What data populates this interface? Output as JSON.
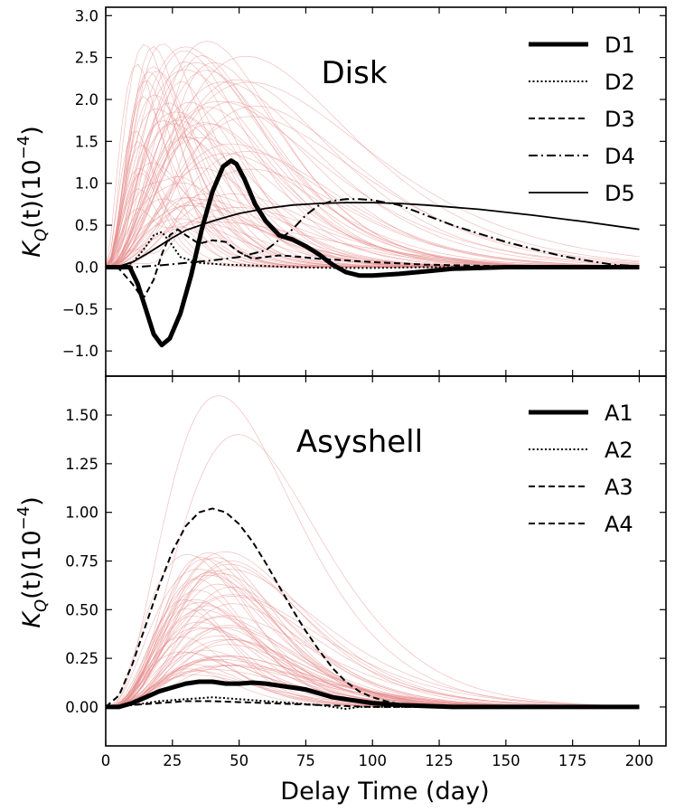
{
  "chart_data": [
    {
      "type": "line",
      "id": "disk",
      "title": "Disk",
      "xlabel": "",
      "ylabel_base": "K",
      "ylabel_sub": "Q",
      "ylabel_rest": "(t)(10",
      "ylabel_sup": "−4",
      "ylabel_close": ")",
      "xlim": [
        0,
        210
      ],
      "ylim": [
        -1.3,
        3.1
      ],
      "yticks": [
        -1.0,
        -0.5,
        0.0,
        0.5,
        1.0,
        1.5,
        2.0,
        2.5,
        3.0
      ],
      "ytick_labels": [
        "−1.0",
        "−0.5",
        "0.0",
        "0.5",
        "1.0",
        "1.5",
        "2.0",
        "2.5",
        "3.0"
      ],
      "xticks": [
        0,
        25,
        50,
        75,
        100,
        125,
        150,
        175,
        200
      ],
      "legend_position": "top-right",
      "ensemble_color": "#e58a8a",
      "ensemble_count": 70,
      "series": [
        {
          "name": "D1",
          "style": "solid-thick",
          "x": [
            0,
            9,
            12,
            15,
            18,
            21,
            24,
            28,
            32,
            36,
            40,
            44,
            47,
            49,
            52,
            56,
            60,
            65,
            70,
            75,
            80,
            85,
            90,
            95,
            100,
            110,
            120,
            130,
            140,
            150,
            160,
            180,
            200
          ],
          "y": [
            0.0,
            0.0,
            -0.2,
            -0.5,
            -0.8,
            -0.93,
            -0.85,
            -0.55,
            -0.1,
            0.45,
            0.9,
            1.2,
            1.27,
            1.23,
            1.05,
            0.75,
            0.55,
            0.38,
            0.33,
            0.25,
            0.15,
            0.03,
            -0.06,
            -0.1,
            -0.1,
            -0.08,
            -0.05,
            -0.02,
            -0.01,
            0.0,
            0.0,
            0.0,
            0.0
          ]
        },
        {
          "name": "D2",
          "style": "dotted",
          "x": [
            0,
            5,
            10,
            14,
            18,
            21,
            24,
            28,
            35,
            45,
            55,
            70,
            85,
            100,
            120,
            150,
            200
          ],
          "y": [
            0.0,
            0.0,
            0.05,
            0.2,
            0.38,
            0.42,
            0.3,
            0.12,
            0.05,
            0.03,
            0.02,
            0.0,
            -0.01,
            -0.01,
            0.0,
            0.0,
            0.0
          ]
        },
        {
          "name": "D3",
          "style": "dashed",
          "x": [
            0,
            5,
            10,
            14,
            18,
            21,
            24,
            27,
            30,
            35,
            40,
            45,
            50,
            55,
            60,
            65,
            70,
            80,
            90,
            100,
            120,
            150,
            200
          ],
          "y": [
            0.0,
            -0.02,
            -0.2,
            -0.38,
            -0.15,
            0.15,
            0.38,
            0.45,
            0.38,
            0.28,
            0.32,
            0.3,
            0.18,
            0.1,
            0.12,
            0.14,
            0.13,
            0.1,
            0.08,
            0.06,
            0.03,
            0.01,
            0.0
          ]
        },
        {
          "name": "D4",
          "style": "dashdot",
          "x": [
            0,
            10,
            20,
            30,
            40,
            50,
            60,
            70,
            75,
            80,
            85,
            90,
            95,
            100,
            110,
            120,
            130,
            140,
            150,
            160,
            170,
            180,
            190,
            200
          ],
          "y": [
            0.0,
            0.0,
            0.02,
            0.05,
            0.08,
            0.12,
            0.2,
            0.45,
            0.62,
            0.74,
            0.79,
            0.81,
            0.81,
            0.8,
            0.74,
            0.62,
            0.5,
            0.4,
            0.3,
            0.22,
            0.14,
            0.08,
            0.03,
            0.01
          ]
        },
        {
          "name": "D5",
          "style": "solid",
          "x": [
            0,
            5,
            10,
            15,
            20,
            25,
            30,
            40,
            50,
            60,
            70,
            80,
            90,
            100,
            110,
            120,
            140,
            160,
            180,
            200
          ],
          "y": [
            0.0,
            0.01,
            0.06,
            0.15,
            0.25,
            0.35,
            0.44,
            0.55,
            0.64,
            0.7,
            0.74,
            0.76,
            0.77,
            0.77,
            0.76,
            0.74,
            0.69,
            0.62,
            0.54,
            0.45
          ]
        }
      ]
    },
    {
      "type": "line",
      "id": "asyshell",
      "title": "Asyshell",
      "xlabel": "Delay Time (day)",
      "ylabel_base": "K",
      "ylabel_sub": "Q",
      "ylabel_rest": "(t)(10",
      "ylabel_sup": "−4",
      "ylabel_close": ")",
      "xlim": [
        0,
        210
      ],
      "ylim": [
        -0.2,
        1.7
      ],
      "yticks": [
        0.0,
        0.25,
        0.5,
        0.75,
        1.0,
        1.25,
        1.5
      ],
      "ytick_labels": [
        "0.00",
        "0.25",
        "0.50",
        "0.75",
        "1.00",
        "1.25",
        "1.50"
      ],
      "xticks": [
        0,
        25,
        50,
        75,
        100,
        125,
        150,
        175,
        200
      ],
      "xtick_labels": [
        "0",
        "25",
        "50",
        "75",
        "100",
        "125",
        "150",
        "175",
        "200"
      ],
      "legend_position": "top-right",
      "ensemble_color": "#e58a8a",
      "ensemble_count": 60,
      "series": [
        {
          "name": "A1",
          "style": "solid-thick",
          "x": [
            0,
            5,
            10,
            15,
            20,
            25,
            30,
            35,
            40,
            45,
            50,
            55,
            60,
            65,
            70,
            75,
            80,
            85,
            90,
            95,
            100,
            110,
            120,
            130,
            140,
            160,
            180,
            200
          ],
          "y": [
            0.0,
            0.0,
            0.02,
            0.05,
            0.08,
            0.1,
            0.12,
            0.13,
            0.13,
            0.12,
            0.12,
            0.125,
            0.12,
            0.11,
            0.1,
            0.09,
            0.07,
            0.05,
            0.04,
            0.03,
            0.02,
            0.01,
            0.005,
            0.0,
            0.0,
            0.0,
            0.0,
            0.0
          ]
        },
        {
          "name": "A2",
          "style": "dotted",
          "x": [
            0,
            10,
            20,
            30,
            40,
            50,
            60,
            70,
            80,
            85,
            90,
            95,
            100,
            110,
            130,
            160,
            200
          ],
          "y": [
            0.0,
            0.01,
            0.03,
            0.04,
            0.05,
            0.04,
            0.03,
            0.02,
            0.01,
            0.0,
            -0.01,
            0.0,
            0.0,
            0.0,
            0.0,
            0.0,
            0.0
          ]
        },
        {
          "name": "A3",
          "style": "dashed",
          "x": [
            0,
            5,
            10,
            15,
            20,
            25,
            30,
            35,
            40,
            45,
            50,
            55,
            60,
            65,
            70,
            75,
            80,
            85,
            90,
            95,
            100,
            105,
            110,
            115,
            120,
            130,
            150,
            200
          ],
          "y": [
            0.0,
            0.06,
            0.22,
            0.42,
            0.62,
            0.8,
            0.93,
            1.0,
            1.02,
            1.0,
            0.94,
            0.85,
            0.74,
            0.62,
            0.5,
            0.39,
            0.29,
            0.2,
            0.13,
            0.08,
            0.05,
            0.03,
            0.015,
            0.008,
            0.004,
            0.0,
            0.0,
            0.0
          ]
        },
        {
          "name": "A4",
          "style": "dashed",
          "x": [
            0,
            10,
            20,
            30,
            40,
            50,
            60,
            70,
            80,
            90,
            100,
            120,
            150,
            200
          ],
          "y": [
            0.0,
            0.01,
            0.02,
            0.03,
            0.03,
            0.025,
            0.02,
            0.015,
            0.01,
            0.005,
            0.0,
            0.0,
            0.0,
            0.0
          ]
        }
      ]
    }
  ]
}
